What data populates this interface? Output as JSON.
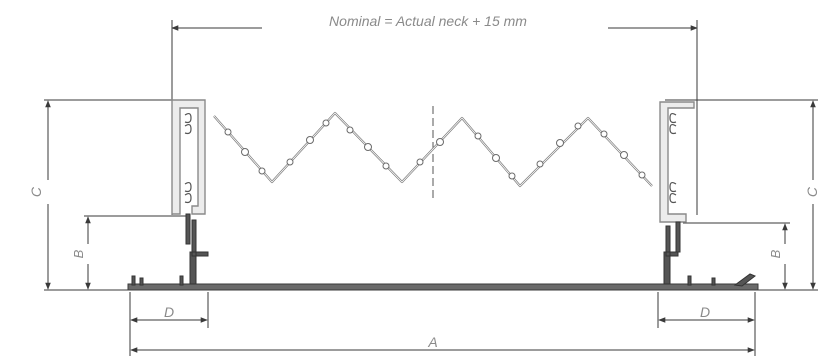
{
  "diagram": {
    "nominal_note": "Nominal = Actual neck + 15 mm",
    "labels": {
      "A": "A",
      "B": "B",
      "C": "C",
      "D": "D"
    }
  }
}
